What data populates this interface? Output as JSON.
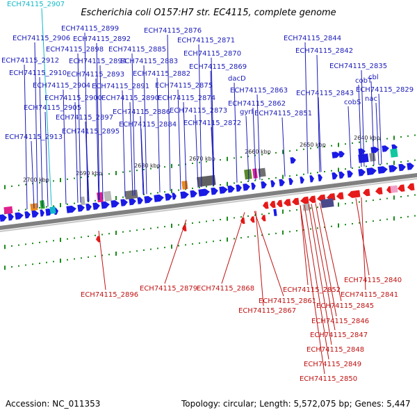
{
  "title": "Escherichia coli O157:H7 str. EC4115, complete genome",
  "footer": {
    "accession": "Accession: NC_011353",
    "topology": "Topology: circular; Length: 5,572,075 bp; Genes: 5,447"
  },
  "colors": {
    "forward_gene": "#1a1ae6",
    "reverse_gene": "#e61a1a",
    "label_blue": "#1a1ab8",
    "label_red": "#c01010",
    "label_cyan": "#10b8c8",
    "backbone": "#808080"
  },
  "scale_ticks": [
    "2700 kbp",
    "2690 kbp",
    "2680 kbp",
    "2670 kbp",
    "2660 kbp",
    "2650 kbp",
    "2640 kbp"
  ],
  "top_cyan_label": "ECH74115_2907",
  "upper_labels": [
    "ECH74115_2876",
    "ECH74115_2899",
    "ECH74115_2906",
    "ECH74115_2892",
    "ECH74115_2871",
    "ECH74115_2898",
    "ECH74115_2885",
    "ECH74115_2870",
    "ECH74115_2912",
    "ECH74115_2894",
    "ECH74115_2883",
    "ECH74115_2869",
    "ECH74115_2910",
    "ECH74115_2893",
    "ECH74115_2882",
    "ECH74115_2904",
    "ECH74115_2891",
    "ECH74115_2875",
    "ECH74115_2900",
    "ECH74115_2890",
    "ECH74115_2874",
    "ECH74115_2905",
    "ECH74115_2886",
    "ECH74115_2873",
    "ECH74115_2897",
    "ECH74115_2884",
    "ECH74115_2872",
    "ECH74115_2895",
    "ECH74115_2913",
    "ECH74115_2844",
    "ECH74115_2842",
    "ECH74115_2835",
    "ECH74115_2829",
    "ECH74115_2843",
    "ECH74115_2863",
    "ECH74115_2862",
    "ECH74115_2851",
    "dacD",
    "gyrI",
    "cobT",
    "cbl",
    "cobS",
    "nac"
  ],
  "lower_labels": [
    "ECH74115_2896",
    "ECH74115_2879",
    "ECH74115_2868",
    "ECH74115_2840",
    "ECH74115_2852",
    "ECH74115_2841",
    "ECH74115_2861",
    "ECH74115_2845",
    "ECH74115_2867",
    "ECH74115_2846",
    "ECH74115_2847",
    "ECH74115_2848",
    "ECH74115_2849",
    "ECH74115_2850"
  ]
}
